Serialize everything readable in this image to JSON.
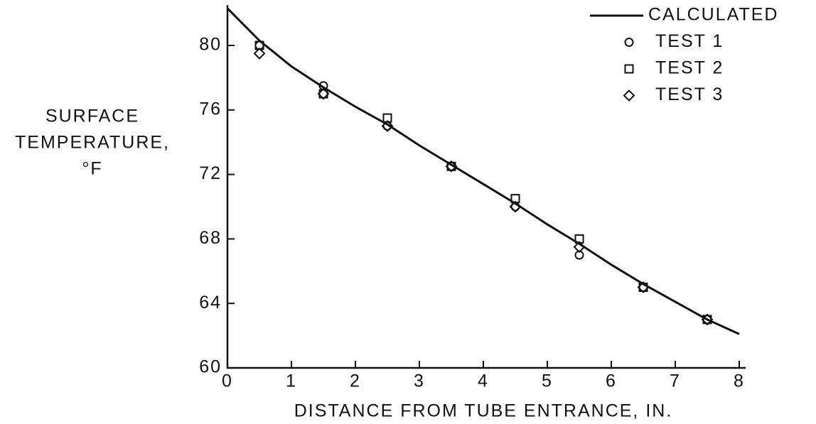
{
  "chart_data": {
    "type": "scatter",
    "y_label": [
      "SURFACE",
      "TEMPERATURE,",
      "°F"
    ],
    "x_label": "DISTANCE FROM TUBE ENTRANCE, IN.",
    "xlim": [
      0,
      8.1
    ],
    "ylim": [
      60,
      82.5
    ],
    "xticks": [
      0,
      1,
      2,
      3,
      4,
      5,
      6,
      7,
      8
    ],
    "yticks": [
      60,
      64,
      68,
      72,
      76,
      80
    ],
    "legend": "upper right",
    "series": [
      {
        "name": "CALCULATED",
        "style": "line",
        "color": "#111",
        "x": [
          0,
          0.5,
          1,
          1.5,
          2,
          2.5,
          3,
          3.5,
          4,
          4.5,
          5,
          5.5,
          6,
          6.5,
          7,
          7.5,
          8
        ],
        "values": [
          82.3,
          80.3,
          78.7,
          77.4,
          76.2,
          75.1,
          73.8,
          72.6,
          71.4,
          70.2,
          68.9,
          67.7,
          66.4,
          65.2,
          64.1,
          63.0,
          62.1
        ]
      },
      {
        "name": "TEST 1",
        "style": "circle",
        "color": "#111",
        "x": [
          0.5,
          1.5,
          2.5,
          3.5,
          4.5,
          5.5,
          6.5,
          7.5
        ],
        "values": [
          80,
          77.5,
          75,
          72.5,
          70,
          67,
          65,
          63
        ]
      },
      {
        "name": "TEST 2",
        "style": "square",
        "color": "#111",
        "x": [
          0.5,
          1.5,
          2.5,
          3.5,
          4.5,
          5.5,
          6.5,
          7.5
        ],
        "values": [
          80,
          77,
          75.5,
          72.5,
          70.5,
          68,
          65,
          63
        ]
      },
      {
        "name": "TEST 3",
        "style": "diamond",
        "color": "#111",
        "x": [
          0.5,
          1.5,
          2.5,
          3.5,
          4.5,
          5.5,
          6.5,
          7.5
        ],
        "values": [
          79.5,
          77,
          75,
          72.5,
          70,
          67.5,
          65,
          63
        ]
      }
    ]
  }
}
